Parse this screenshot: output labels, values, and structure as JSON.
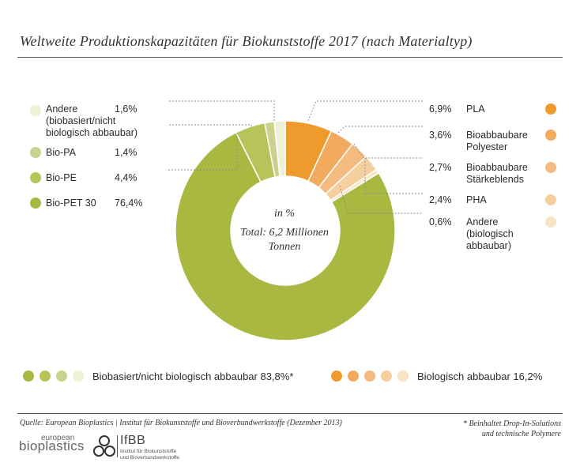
{
  "title": "Weltweite Produktionskapazitäten für Biokunststoffe 2017 (nach Materialtyp)",
  "center": {
    "line1": "in %",
    "line2": "Total: 6,2 Millionen",
    "line3": "Tonnen"
  },
  "colors": {
    "pla": "#ef9a2c",
    "polyester": "#f2aa5e",
    "staerke": "#f4bb80",
    "pha": "#f6cf9e",
    "andere_abbaubar": "#f8e4c4",
    "andere_bio": "#eef0d7",
    "bio_pa": "#cbd18e",
    "bio_pe": "#b6c45a",
    "bio_pet": "#a8b840"
  },
  "chart_data": {
    "type": "pie",
    "title": "Weltweite Produktionskapazitäten für Biokunststoffe 2017 (nach Materialtyp)",
    "unit": "in %",
    "total": "Total: 6,2 Millionen Tonnen",
    "slices": [
      {
        "label": "PLA",
        "value": 6.9,
        "display": "6,9%",
        "color": "#ef9a2c",
        "group": "Biologisch abbaubar"
      },
      {
        "label": "Bioabbaubare Polyester",
        "value": 3.6,
        "display": "3,6%",
        "color": "#f2aa5e",
        "group": "Biologisch abbaubar"
      },
      {
        "label": "Bioabbaubare Stärkeblends",
        "value": 2.7,
        "display": "2,7%",
        "color": "#f4bb80",
        "group": "Biologisch abbaubar"
      },
      {
        "label": "PHA",
        "value": 2.4,
        "display": "2,4%",
        "color": "#f6cf9e",
        "group": "Biologisch abbaubar"
      },
      {
        "label": "Andere (biologisch abbaubar)",
        "value": 0.6,
        "display": "0,6%",
        "color": "#f8e4c4",
        "group": "Biologisch abbaubar"
      },
      {
        "label": "Bio-PET 30",
        "value": 76.4,
        "display": "76,4%",
        "color": "#a8b840",
        "group": "Biobasiert/nicht biologisch abbaubar"
      },
      {
        "label": "Bio-PE",
        "value": 4.4,
        "display": "4,4%",
        "color": "#b6c45a",
        "group": "Biobasiert/nicht biologisch abbaubar"
      },
      {
        "label": "Bio-PA",
        "value": 1.4,
        "display": "1,4%",
        "color": "#cbd18e",
        "group": "Biobasiert/nicht biologisch abbaubar"
      },
      {
        "label": "Andere (biobasiert/nicht biologisch abbaubar)",
        "value": 1.6,
        "display": "1,6%",
        "color": "#eef0d7",
        "group": "Biobasiert/nicht biologisch abbaubar"
      }
    ]
  },
  "left_labels": [
    {
      "name": "Andere",
      "name2": "(biobasiert/nicht",
      "name3": "biologisch abbaubar)",
      "value": "1,6%",
      "color": "#eef0d7"
    },
    {
      "name": "Bio-PA",
      "value": "1,4%",
      "color": "#cbd18e"
    },
    {
      "name": "Bio-PE",
      "value": "4,4%",
      "color": "#b6c45a"
    },
    {
      "name": "Bio-PET 30",
      "value": "76,4%",
      "color": "#a8b840"
    }
  ],
  "right_labels": [
    {
      "value": "6,9%",
      "name": "PLA",
      "color": "#ef9a2c"
    },
    {
      "value": "3,6%",
      "name": "Bioabbaubare",
      "name2": "Polyester",
      "color": "#f2aa5e"
    },
    {
      "value": "2,7%",
      "name": "Bioabbaubare",
      "name2": "Stärkeblends",
      "color": "#f4bb80"
    },
    {
      "value": "2,4%",
      "name": "PHA",
      "color": "#f6cf9e"
    },
    {
      "value": "0,6%",
      "name": "Andere",
      "name2": "(biologisch",
      "name3": "abbaubar)",
      "color": "#f8e4c4"
    }
  ],
  "summary": {
    "bio_text": "Biobasiert/nicht biologisch abbaubar 83,8%*",
    "abbau_text": "Biologisch abbaubar 16,2%"
  },
  "source": "Quelle: European Bioplastics | Institut für Biokunststoffe und Bioverbundwerkstoffe (Dezember 2013)",
  "footnote": {
    "line1": "* Beinhaltet Drop-In-Solutions",
    "line2": "und technische Polymere"
  },
  "logos": {
    "eb_small": "european",
    "eb_big": "bioplastics",
    "ifbb": "IfBB",
    "ifbb_line1": "Institut für Biokunststoffe",
    "ifbb_line2": "und Bioverbundwerkstoffe"
  }
}
